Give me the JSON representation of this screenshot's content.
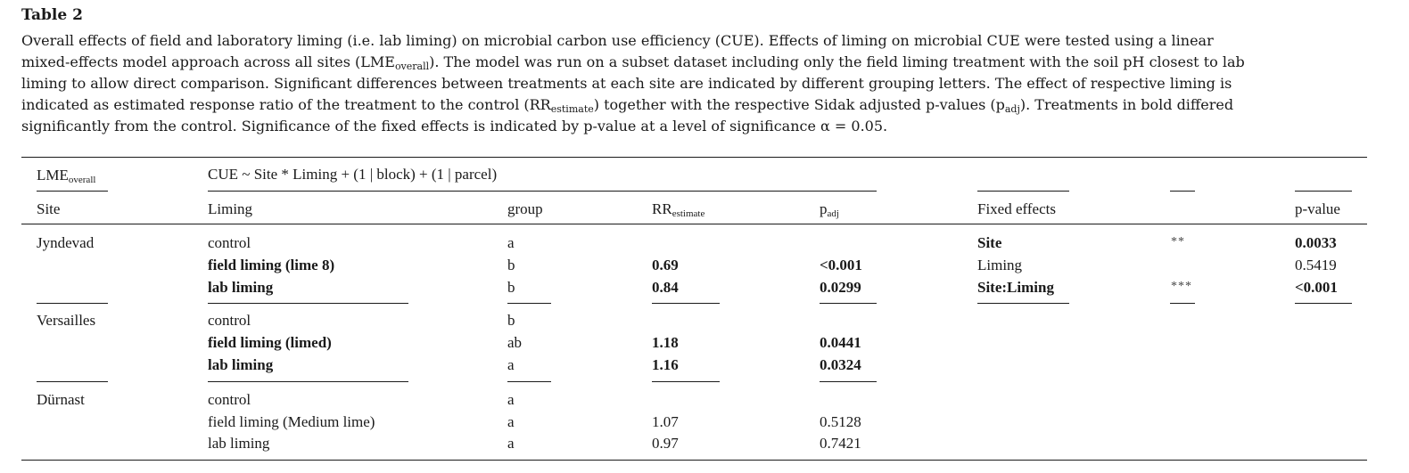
{
  "title": "Table 2",
  "caption": {
    "l1": "Overall effects of field and laboratory liming (i.e. lab liming) on microbial carbon use efficiency (CUE). Effects of liming on microbial CUE were tested using a linear",
    "l2a": "mixed-effects model approach across all sites (LME",
    "l2sub": "overall",
    "l2b": "). The model was run on a subset dataset including only the field liming treatment with the soil pH closest to lab",
    "l3": "liming to allow direct comparison. Significant differences between treatments at each site are indicated by different grouping letters. The effect of respective liming is",
    "l4a": "indicated as estimated response ratio of the treatment to the control (RR",
    "l4sub": "estimate",
    "l4b": ") together with the respective Sidak adjusted p-values (p",
    "l4sub2": "adj",
    "l4c": "). Treatments in bold differed",
    "l5": "significantly from the control. Significance of the fixed effects is indicated by p-value at a level of significance α = 0.05."
  },
  "model": {
    "label": "LME",
    "label_sub": "overall",
    "formula": "CUE ~ Site * Liming + (1 | block) + (1 | parcel)"
  },
  "headers": {
    "site": "Site",
    "liming": "Liming",
    "group": "group",
    "rr": "RR",
    "rr_sub": "estimate",
    "padj": "p",
    "padj_sub": "adj",
    "fixed": "Fixed effects",
    "pvalue": "p-value"
  },
  "sites": [
    {
      "name": "Jyndevad",
      "rows": [
        {
          "liming": "control",
          "group": "a",
          "rr": "",
          "padj": "",
          "bold": false
        },
        {
          "liming": "field liming (lime 8)",
          "group": "b",
          "rr": "0.69",
          "padj": "<0.001",
          "bold": true
        },
        {
          "liming": "lab liming",
          "group": "b",
          "rr": "0.84",
          "padj": "0.0299",
          "bold": true
        }
      ]
    },
    {
      "name": "Versailles",
      "rows": [
        {
          "liming": "control",
          "group": "b",
          "rr": "",
          "padj": "",
          "bold": false
        },
        {
          "liming": "field liming (limed)",
          "group": "ab",
          "rr": "1.18",
          "padj": "0.0441",
          "bold": true
        },
        {
          "liming": "lab liming",
          "group": "a",
          "rr": "1.16",
          "padj": "0.0324",
          "bold": true
        }
      ]
    },
    {
      "name": "Dürnast",
      "rows": [
        {
          "liming": "control",
          "group": "a",
          "rr": "",
          "padj": "",
          "bold": false
        },
        {
          "liming": "field liming (Medium lime)",
          "group": "a",
          "rr": "1.07",
          "padj": "0.5128",
          "bold": false
        },
        {
          "liming": "lab liming",
          "group": "a",
          "rr": "0.97",
          "padj": "0.7421",
          "bold": false
        }
      ]
    }
  ],
  "fixed_effects": [
    {
      "name": "Site",
      "stars": "**",
      "pvalue": "0.0033",
      "bold": true
    },
    {
      "name": "Liming",
      "stars": "",
      "pvalue": "0.5419",
      "bold": false
    },
    {
      "name": "Site:Liming",
      "stars": "***",
      "pvalue": "<0.001",
      "bold": true
    }
  ]
}
